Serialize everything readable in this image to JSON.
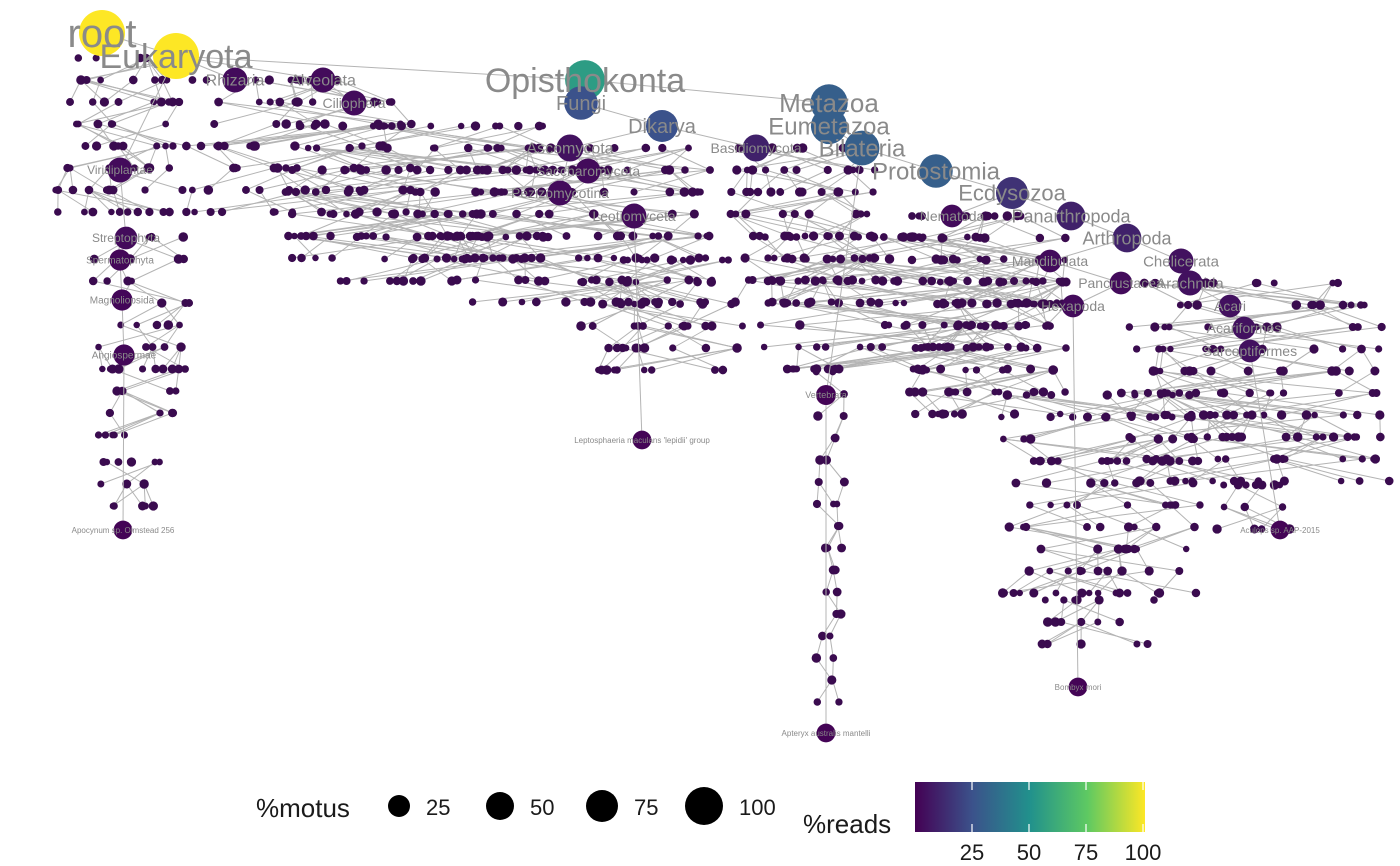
{
  "legend": {
    "motus_title": "%motus",
    "motus_breaks": [
      "25",
      "50",
      "75",
      "100"
    ],
    "reads_title": "%reads",
    "reads_breaks": [
      "25",
      "50",
      "75",
      "100"
    ],
    "reads_colors": [
      "#440154",
      "#3b528b",
      "#21918c",
      "#5ec962",
      "#fde725"
    ]
  },
  "tree": {
    "edge_color": "#b4b4b4",
    "label_color": "#8a8a8a",
    "nodes": [
      {
        "id": "root",
        "label": "root",
        "size": 100,
        "reads": 100
      },
      {
        "id": "euk",
        "parent": "root",
        "label": "Eukaryota",
        "size": 100,
        "reads": 100
      },
      {
        "id": "opis",
        "parent": "euk",
        "label": "Opisthokonta",
        "size": 70,
        "reads": 55
      },
      {
        "id": "alv",
        "parent": "euk",
        "label": "Alveolata",
        "size": 20,
        "reads": 3
      },
      {
        "id": "rhiz",
        "parent": "euk",
        "label": "Rhizaria",
        "size": 20,
        "reads": 3
      },
      {
        "id": "meta",
        "parent": "opis",
        "label": "Metazoa",
        "size": 60,
        "reads": 30
      },
      {
        "id": "fungi",
        "parent": "opis",
        "label": "Fungi",
        "size": 45,
        "reads": 25
      },
      {
        "id": "dik",
        "parent": "fungi",
        "label": "Dikarya",
        "size": 40,
        "reads": 25
      },
      {
        "id": "eumet",
        "parent": "meta",
        "label": "Eumetazoa",
        "size": 55,
        "reads": 30
      },
      {
        "id": "bila",
        "parent": "eumet",
        "label": "Bilateria",
        "size": 50,
        "reads": 30
      },
      {
        "id": "prot",
        "parent": "bila",
        "label": "Protostomia",
        "size": 45,
        "reads": 30
      },
      {
        "id": "ecdy",
        "parent": "prot",
        "label": "Ecdysozoa",
        "size": 40,
        "reads": 15
      },
      {
        "id": "pana",
        "parent": "ecdy",
        "label": "Panarthropoda",
        "size": 30,
        "reads": 10
      },
      {
        "id": "arth",
        "parent": "pana",
        "label": "Arthropoda",
        "size": 30,
        "reads": 10
      },
      {
        "id": "chel",
        "parent": "arth",
        "label": "Chelicerata",
        "size": 20,
        "reads": 5
      },
      {
        "id": "arach",
        "parent": "chel",
        "label": "Arachnida",
        "size": 20,
        "reads": 5
      },
      {
        "id": "acari",
        "parent": "arach",
        "label": "Acari",
        "size": 15,
        "reads": 5
      },
      {
        "id": "acarif",
        "parent": "acari",
        "label": "Acariformes",
        "size": 15,
        "reads": 5
      },
      {
        "id": "sarc",
        "parent": "acarif",
        "label": "Sarcoptiformes",
        "size": 15,
        "reads": 5
      },
      {
        "id": "mand",
        "parent": "arth",
        "label": "Mandibulata",
        "size": 15,
        "reads": 3
      },
      {
        "id": "panc",
        "parent": "mand",
        "label": "Pancrustacea",
        "size": 15,
        "reads": 3
      },
      {
        "id": "hexa",
        "parent": "panc",
        "label": "Hexapoda",
        "size": 15,
        "reads": 3
      },
      {
        "id": "nema",
        "parent": "ecdy",
        "label": "Nematoda",
        "size": 15,
        "reads": 3
      },
      {
        "id": "asco",
        "parent": "dik",
        "label": "Ascomycota",
        "size": 25,
        "reads": 5
      },
      {
        "id": "basi",
        "parent": "dik",
        "label": "Basidiomycota",
        "size": 25,
        "reads": 10
      },
      {
        "id": "pezizo",
        "parent": "asco",
        "label": "Pezizomycotina",
        "size": 20,
        "reads": 3
      },
      {
        "id": "sacch",
        "parent": "asco",
        "label": "Saccharomyceta",
        "size": 20,
        "reads": 3
      },
      {
        "id": "leotio",
        "parent": "pezizo",
        "label": "Leotiomyceta",
        "size": 20,
        "reads": 3
      },
      {
        "id": "ciliop",
        "parent": "alv",
        "label": "Ciliophora",
        "size": 20,
        "reads": 3
      },
      {
        "id": "viridi",
        "parent": "euk",
        "label": "Viridiplantae",
        "size": 20,
        "reads": 3
      },
      {
        "id": "strept",
        "parent": "viridi",
        "label": "Streptophyta",
        "size": 15,
        "reads": 3
      },
      {
        "id": "sperm",
        "parent": "strept",
        "label": "Spermatophyta",
        "size": 12,
        "reads": 2
      },
      {
        "id": "magno",
        "parent": "sperm",
        "label": "Magnoliopsida",
        "size": 12,
        "reads": 2
      },
      {
        "id": "angio",
        "parent": "magno",
        "label": "Angiospermae",
        "size": 12,
        "reads": 2
      },
      {
        "id": "apoc",
        "parent": "angio",
        "label": "Apocynum sp. Olmstead 256",
        "size": 8,
        "reads": 1
      },
      {
        "id": "verteb",
        "parent": "bila",
        "label": "Vertebrata",
        "size": 10,
        "reads": 1
      },
      {
        "id": "apteryx",
        "parent": "verteb",
        "label": "Apteryx australis mantelli",
        "size": 8,
        "reads": 1
      },
      {
        "id": "bombyx",
        "parent": "hexa",
        "label": "Bombyx mori",
        "size": 8,
        "reads": 1
      },
      {
        "id": "lepto",
        "parent": "leotio",
        "label": "Leptosphaeria maculans 'lepidii' group",
        "size": 8,
        "reads": 1
      },
      {
        "id": "arth2",
        "parent": "sarc",
        "label": "Aculops sp. AAP-2015",
        "size": 8,
        "reads": 1
      }
    ]
  }
}
